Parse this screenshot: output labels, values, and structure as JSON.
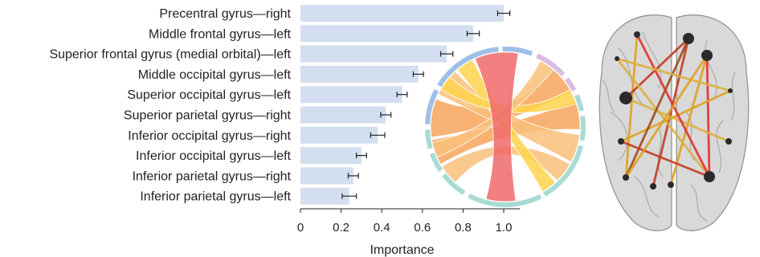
{
  "chart_data": {
    "type": "bar",
    "orientation": "horizontal",
    "categories": [
      "Precentral gyrus—right",
      "Middle frontal gyrus—left",
      "Superior frontal gyrus (medial orbital)—left",
      "Middle occipital gyrus—left",
      "Superior occipital gyrus—left",
      "Superior parietal gyrus—right",
      "Inferior occipital gyrus—right",
      "Inferior occipital gyrus—left",
      "Inferior parietal gyrus—right",
      "Inferior parietal gyrus—left"
    ],
    "values": [
      1.0,
      0.85,
      0.72,
      0.58,
      0.5,
      0.42,
      0.38,
      0.3,
      0.26,
      0.24
    ],
    "errors": [
      0.03,
      0.03,
      0.03,
      0.025,
      0.025,
      0.025,
      0.035,
      0.025,
      0.025,
      0.035
    ],
    "xlabel": "Importance",
    "xlim": [
      0,
      1.08
    ],
    "xticks": [
      0,
      0.2,
      0.4,
      0.6,
      0.8,
      1.0
    ],
    "xtick_labels": [
      "0",
      "0.2",
      "0.4",
      "0.6",
      "0.8",
      "1.0"
    ],
    "grid": false,
    "colors": {
      "bar": "#d3dff0",
      "error_bar": "#222222",
      "axis": "#222222"
    }
  },
  "chord_inset": {
    "arc_colors": [
      "#9dbfe8",
      "#d9bde0",
      "#a8dbd4"
    ],
    "ribbon_colors": [
      "#f06a6a",
      "#f7a55a",
      "#f9c07a",
      "#ffd34d"
    ]
  },
  "brain_inset": {
    "edge_colors": [
      "#c23b22",
      "#e0a020",
      "#d9b040",
      "#9e4a1c",
      "#e03030"
    ],
    "node_color": "#2a2a2a"
  }
}
